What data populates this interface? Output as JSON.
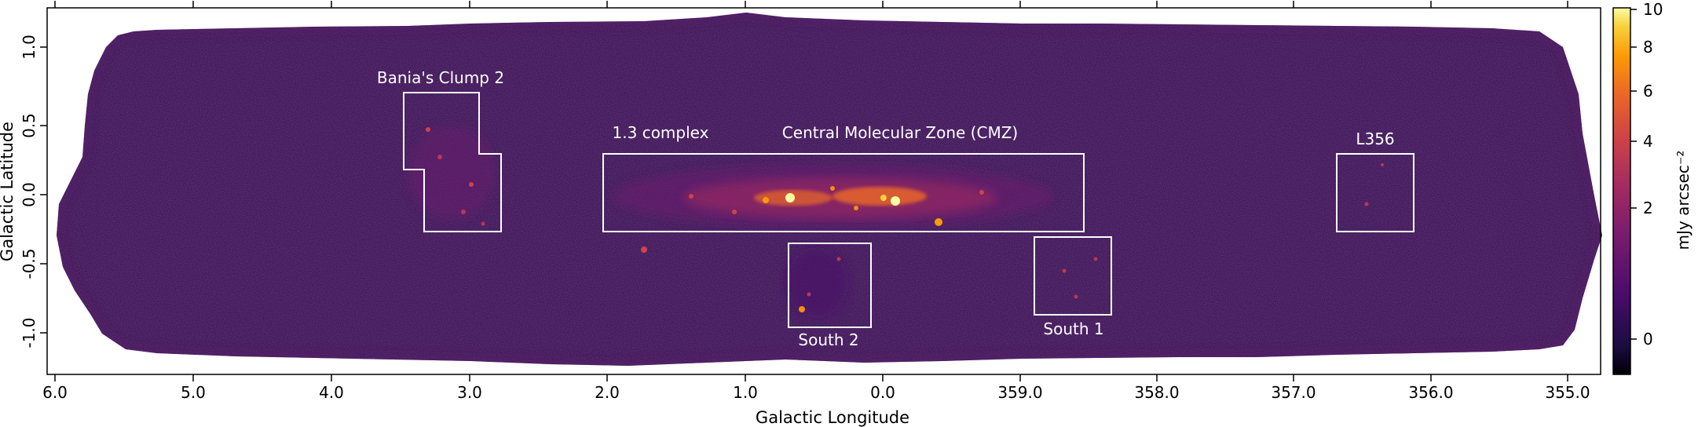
{
  "x_axis": {
    "label": "Galactic Longitude",
    "ticks": [
      "6.0",
      "5.0",
      "4.0",
      "3.0",
      "2.0",
      "1.0",
      "0.0",
      "359.0",
      "358.0",
      "357.0",
      "356.0",
      "355.0"
    ]
  },
  "y_axis": {
    "label": "Galactic Latitude",
    "ticks": [
      "1.0",
      "0.5",
      "0.0",
      "-0.5",
      "-1.0"
    ]
  },
  "colorbar": {
    "label": "mJy arcsec⁻²",
    "ticks": [
      "10",
      "8",
      "6",
      "4",
      "2",
      "0"
    ],
    "colormap": "inferno",
    "scale": "asinh"
  },
  "regions": [
    {
      "name": "Central Molecular Zone (CMZ)"
    },
    {
      "name": "1.3 complex"
    },
    {
      "name": "Bania's Clump 2"
    },
    {
      "name": "L356"
    },
    {
      "name": "South 1"
    },
    {
      "name": "South 2"
    }
  ],
  "colors": {
    "background_field": "#2a0f4a",
    "emission_bright": "#fcffa4",
    "emission_mid": "#f98e09",
    "emission_low": "#bc3754",
    "region_outline": "#ffffff"
  }
}
